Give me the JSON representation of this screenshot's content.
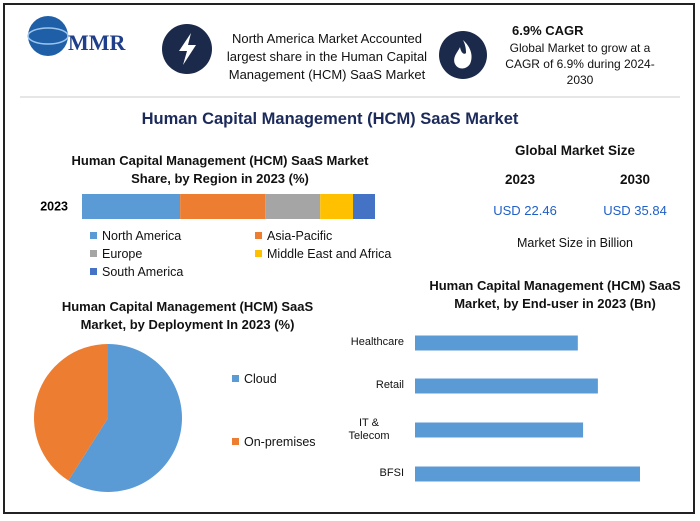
{
  "header": {
    "logo": "MMR",
    "highlight": "North America Market Accounted largest share in the Human Capital Management (HCM) SaaS Market",
    "cagr_title": "6.9% CAGR",
    "cagr_text": "Global Market to grow at a CAGR of 6.9% during 2024-2030"
  },
  "title": "Human Capital Management (HCM) SaaS Market",
  "market_size": {
    "title": "Global Market Size",
    "columns": [
      {
        "year": "2023",
        "value": "USD 22.46"
      },
      {
        "year": "2030",
        "value": "USD 35.84"
      }
    ],
    "note": "Market Size in Billion"
  },
  "chart_data": [
    {
      "type": "stacked_bar",
      "title": "Human Capital Management (HCM) SaaS Market Share, by Region in 2023 (%)",
      "categories": [
        "2023"
      ],
      "series": [
        {
          "name": "North America",
          "color": "#5b9bd5",
          "values": [
            33.5
          ]
        },
        {
          "name": "Asia-Pacific",
          "color": "#ed7d31",
          "values": [
            29
          ]
        },
        {
          "name": "Europe",
          "color": "#a5a5a5",
          "values": [
            18.8
          ]
        },
        {
          "name": "Middle East and Africa",
          "color": "#ffc000",
          "values": [
            11.2
          ]
        },
        {
          "name": "South America",
          "color": "#4472c4",
          "values": [
            7.5
          ]
        }
      ]
    },
    {
      "type": "pie",
      "title": "Human Capital Management (HCM) SaaS Market, by Deployment In 2023 (%)",
      "categories": [
        "Cloud",
        "On-premises"
      ],
      "values": [
        59,
        41
      ],
      "colors": [
        "#5b9bd5",
        "#ed7d31"
      ]
    },
    {
      "type": "hbar",
      "title": "Human Capital Management (HCM) SaaS Market, by End-user in 2023 (Bn)",
      "categories": [
        "Healthcare",
        "Retail",
        "IT & Telecom",
        "BFSI"
      ],
      "values": [
        4.95,
        5.56,
        5.11,
        6.84
      ],
      "color": "#5b9bd5"
    }
  ]
}
